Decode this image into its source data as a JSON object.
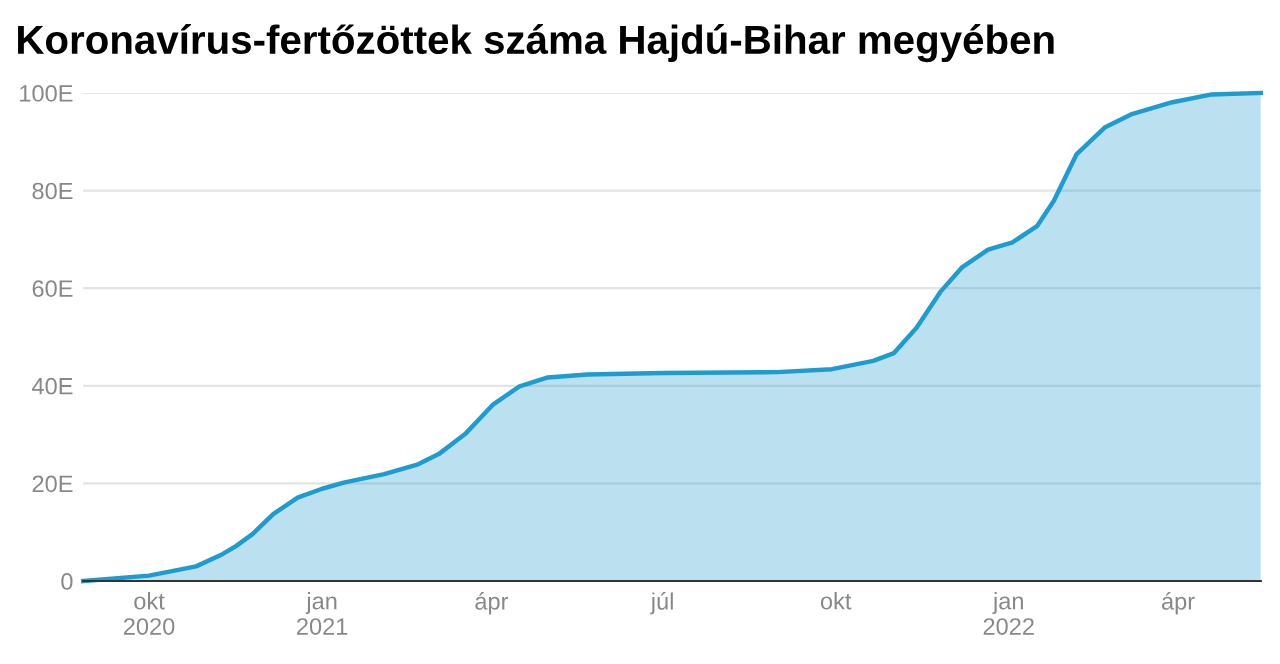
{
  "chart_data": {
    "type": "area",
    "title": "Koronavírus-fertőzöttek száma Hajdú-Bihar megyében",
    "x": [
      "2020-08-27",
      "2020-10-01",
      "2020-10-26",
      "2020-11-09",
      "2020-11-16",
      "2020-11-25",
      "2020-12-06",
      "2020-12-19",
      "2021-01-01",
      "2021-01-13",
      "2021-02-03",
      "2021-02-21",
      "2021-03-04",
      "2021-03-18",
      "2021-04-02",
      "2021-04-16",
      "2021-05-01",
      "2021-05-22",
      "2021-07-01",
      "2021-08-31",
      "2021-09-29",
      "2021-10-21",
      "2021-11-01",
      "2021-11-13",
      "2021-11-26",
      "2021-12-07",
      "2021-12-21",
      "2022-01-03",
      "2022-01-16",
      "2022-01-25",
      "2022-02-06",
      "2022-02-21",
      "2022-03-07",
      "2022-03-29",
      "2022-04-19",
      "2022-05-15"
    ],
    "series": [
      {
        "color": "#1e9ccf",
        "values": [
          0,
          1.1,
          3.0,
          5.5,
          7.1,
          9.6,
          13.7,
          17.1,
          18.9,
          20.2,
          21.9,
          23.9,
          26.0,
          30.1,
          36.2,
          39.9,
          41.7,
          42.3,
          42.6,
          42.8,
          43.4,
          45.1,
          46.7,
          51.9,
          59.4,
          64.2,
          67.9,
          69.4,
          72.7,
          77.9,
          87.4,
          92.9,
          95.6,
          98.1,
          99.7,
          100
        ]
      }
    ],
    "xlim": [
      "2020-08-27",
      "2022-05-15"
    ],
    "xticks": [
      {
        "value": "2020-10-01",
        "label": "okt\n2020"
      },
      {
        "value": "2021-01-01",
        "label": "jan\n2021"
      },
      {
        "value": "2021-04-01",
        "label": "ápr"
      },
      {
        "value": "2021-07-01",
        "label": "júl"
      },
      {
        "value": "2021-10-01",
        "label": "okt"
      },
      {
        "value": "2022-01-01",
        "label": "jan\n2022"
      },
      {
        "value": "2022-04-01",
        "label": "ápr"
      }
    ],
    "ylim": [
      0,
      100
    ],
    "yticks": [
      0,
      {
        "value": 20,
        "label": "20E"
      },
      {
        "value": 40,
        "label": "40E"
      },
      {
        "value": 60,
        "label": "60E"
      },
      {
        "value": 80,
        "label": "80E"
      },
      {
        "value": 100,
        "label": "100E"
      }
    ],
    "grid": "y"
  }
}
